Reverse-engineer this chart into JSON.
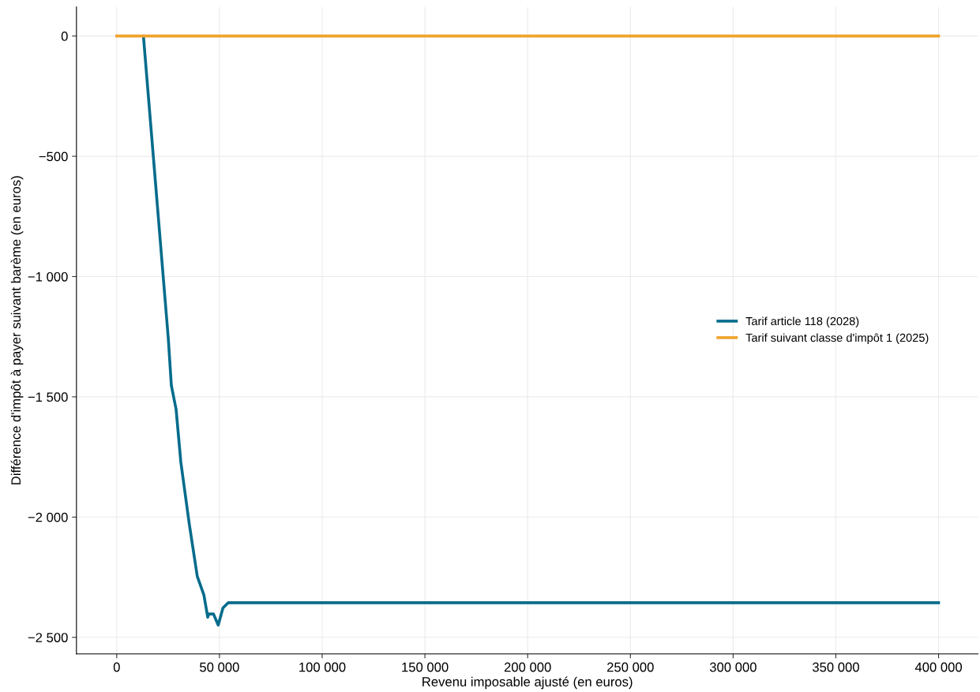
{
  "chart_data": {
    "type": "line",
    "xlabel": "Revenu imposable ajusté (en euros)",
    "ylabel": "Différence d'impôt à payer suivant barème (en euros)",
    "series": [
      {
        "name": "Tarif article 118 (2028)",
        "color": "#046c8c",
        "x": [
          13000,
          25100,
          26600,
          28900,
          31200,
          35300,
          39200,
          42400,
          44300,
          44900,
          47100,
          49400,
          51700,
          54300,
          400000
        ],
        "values": [
          0,
          -1257,
          -1453,
          -1552,
          -1771,
          -2028,
          -2246,
          -2323,
          -2416,
          -2403,
          -2403,
          -2449,
          -2378,
          -2356,
          -2356
        ]
      },
      {
        "name": "Tarif suivant classe d'impôt 1 (2025)",
        "color": "#f0a32c",
        "x": [
          0,
          400000
        ],
        "values": [
          0,
          0
        ]
      }
    ],
    "xlim": [
      -19600,
      419200
    ],
    "ylim": [
      -2569,
      121
    ],
    "xticks": [
      0,
      {
        "value": 50000,
        "label": "50 000"
      },
      {
        "value": 100000,
        "label": "100 000"
      },
      {
        "value": 150000,
        "label": "150 000"
      },
      {
        "value": 200000,
        "label": "200 000"
      },
      {
        "value": 250000,
        "label": "250 000"
      },
      {
        "value": 300000,
        "label": "300 000"
      },
      {
        "value": 350000,
        "label": "350 000"
      },
      {
        "value": 400000,
        "label": "400 000"
      }
    ],
    "yticks": [
      {
        "value": -2500,
        "label": "−2 500"
      },
      {
        "value": -2000,
        "label": "−2 000"
      },
      {
        "value": -1500,
        "label": "−1 500"
      },
      {
        "value": -1000,
        "label": "−1 000"
      },
      {
        "value": -500,
        "label": "−500"
      },
      0
    ],
    "grid": true,
    "legend": "right",
    "marker": "none",
    "line_style": "solid"
  }
}
